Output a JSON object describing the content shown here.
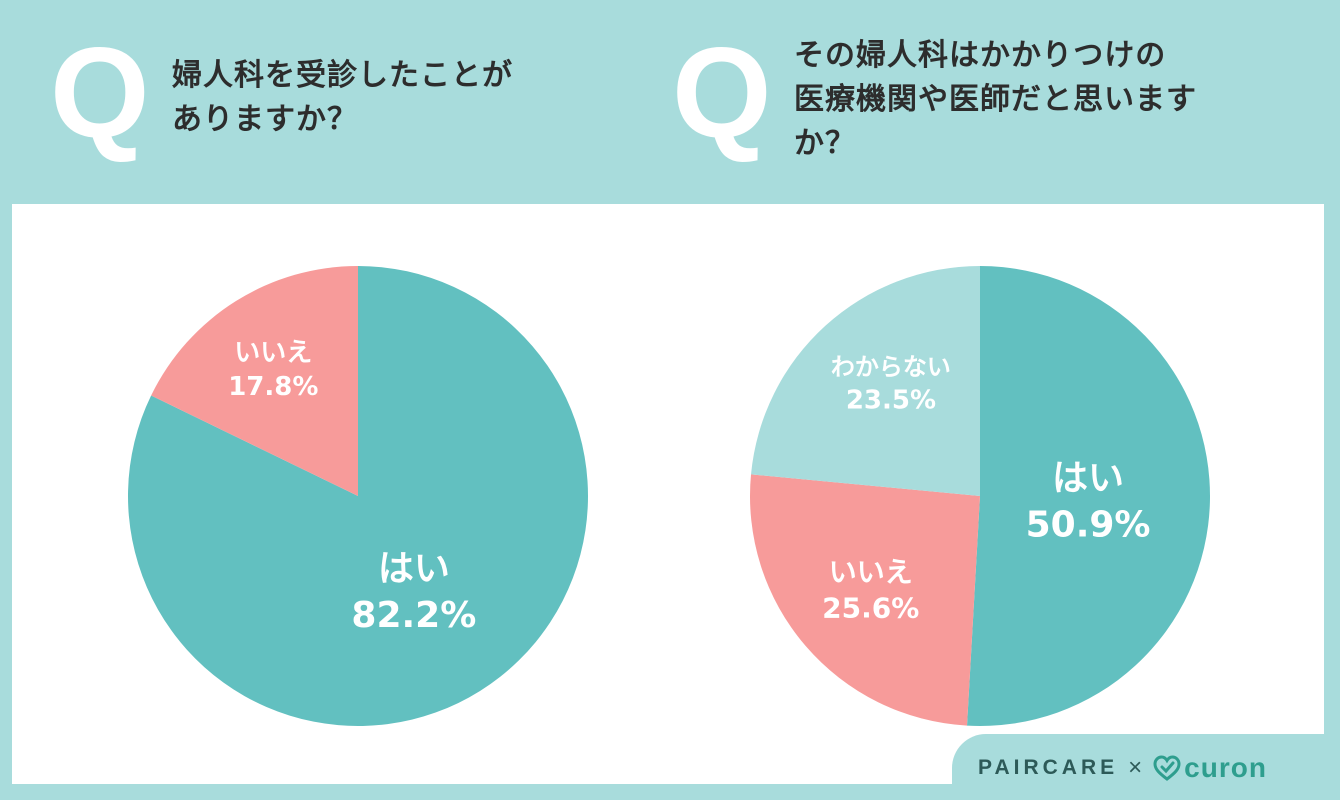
{
  "questions": [
    {
      "mark": "Q",
      "lines": [
        "婦人科を受診したことが",
        "ありますか？"
      ]
    },
    {
      "mark": "Q",
      "lines": [
        "その婦人科はかかりつけの",
        "医療機関や医師だと思います",
        "か？"
      ]
    }
  ],
  "chart_data": [
    {
      "type": "pie",
      "categories": [
        "はい",
        "いいえ"
      ],
      "values": [
        82.2,
        17.8
      ],
      "labels": [
        "82.2%",
        "17.8%"
      ],
      "colors": [
        "#62c0c0",
        "#f79b9a"
      ],
      "label_colors": [
        "#ffffff",
        "#ffffff"
      ]
    },
    {
      "type": "pie",
      "categories": [
        "はい",
        "いいえ",
        "わからない"
      ],
      "values": [
        50.9,
        25.6,
        23.5
      ],
      "labels": [
        "50.9%",
        "25.6%",
        "23.5%"
      ],
      "colors": [
        "#62c0c0",
        "#f79b9a",
        "#a8dcdc"
      ],
      "label_colors": [
        "#ffffff",
        "#ffffff",
        "#ffffff"
      ]
    }
  ],
  "footer": {
    "brand_left": "PAIRCARE",
    "separator": "×",
    "brand_right": "curon"
  },
  "colors": {
    "background": "#a8dcdc",
    "panel": "#ffffff",
    "text": "#2d2d2d"
  }
}
